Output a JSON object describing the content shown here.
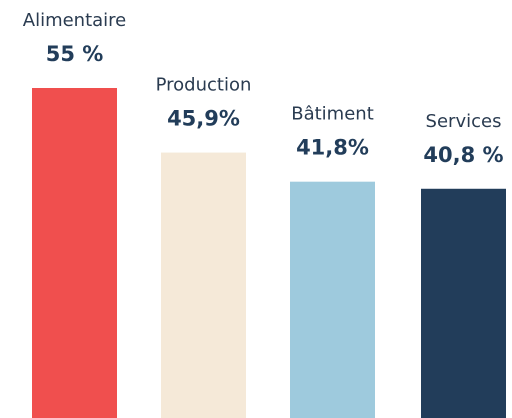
{
  "chart_data": {
    "type": "bar",
    "categories": [
      "Alimentaire",
      "Production",
      "Bâtiment",
      "Services"
    ],
    "values": [
      55,
      45.9,
      41.8,
      40.8
    ],
    "value_labels": [
      "55 %",
      "45,9%",
      "41,8%",
      "40,8 %"
    ],
    "colors": [
      "#f04f4e",
      "#f5e9d8",
      "#9ecadd",
      "#223d5a"
    ],
    "ylim": [
      8.5,
      55
    ]
  }
}
